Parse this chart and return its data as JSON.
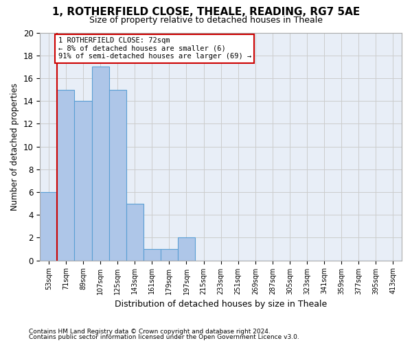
{
  "title1": "1, ROTHERFIELD CLOSE, THEALE, READING, RG7 5AE",
  "title2": "Size of property relative to detached houses in Theale",
  "xlabel": "Distribution of detached houses by size in Theale",
  "ylabel": "Number of detached properties",
  "categories": [
    "53sqm",
    "71sqm",
    "89sqm",
    "107sqm",
    "125sqm",
    "143sqm",
    "161sqm",
    "179sqm",
    "197sqm",
    "215sqm",
    "233sqm",
    "251sqm",
    "269sqm",
    "287sqm",
    "305sqm",
    "323sqm",
    "341sqm",
    "359sqm",
    "377sqm",
    "395sqm",
    "413sqm"
  ],
  "values": [
    6,
    15,
    14,
    17,
    15,
    5,
    1,
    1,
    2,
    0,
    0,
    0,
    0,
    0,
    0,
    0,
    0,
    0,
    0,
    0,
    0
  ],
  "bar_color": "#aec6e8",
  "bar_edge_color": "#5a9fd4",
  "annotation_text_line1": "1 ROTHERFIELD CLOSE: 72sqm",
  "annotation_text_line2": "← 8% of detached houses are smaller (6)",
  "annotation_text_line3": "91% of semi-detached houses are larger (69) →",
  "annotation_box_color": "#ffffff",
  "annotation_box_edge_color": "#cc0000",
  "red_line_x": 0.5,
  "ylim": [
    0,
    20
  ],
  "yticks": [
    0,
    2,
    4,
    6,
    8,
    10,
    12,
    14,
    16,
    18,
    20
  ],
  "grid_color": "#cccccc",
  "bg_color": "#e8eef7",
  "footer1": "Contains HM Land Registry data © Crown copyright and database right 2024.",
  "footer2": "Contains public sector information licensed under the Open Government Licence v3.0."
}
